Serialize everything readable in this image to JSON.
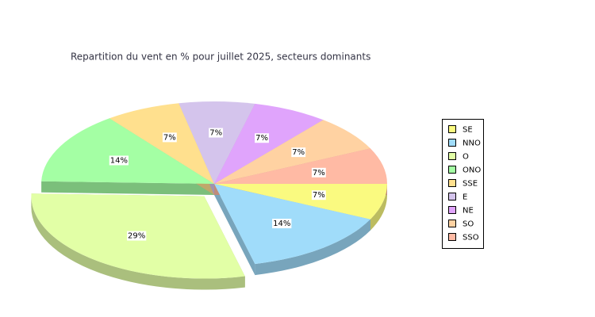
{
  "chart_data": {
    "type": "pie3d",
    "title": "Repartition du vent en % pour juillet 2025, secteurs dominants",
    "categories": [
      "SE",
      "NNO",
      "O",
      "ONO",
      "SSE",
      "E",
      "NE",
      "SO",
      "SSO"
    ],
    "values": [
      7,
      14,
      29,
      14,
      7,
      7,
      7,
      7,
      7
    ],
    "value_labels": [
      "7%",
      "14%",
      "29%",
      "14%",
      "7%",
      "7%",
      "7%",
      "7%",
      "7%"
    ],
    "colors": [
      "#fafa80",
      "#a0dcfa",
      "#e2ffa6",
      "#a4ffa4",
      "#ffe08e",
      "#d4c4ec",
      "#e0a4fc",
      "#ffd2a2",
      "#ffbaa4"
    ],
    "explode": "O",
    "legend": "right"
  }
}
